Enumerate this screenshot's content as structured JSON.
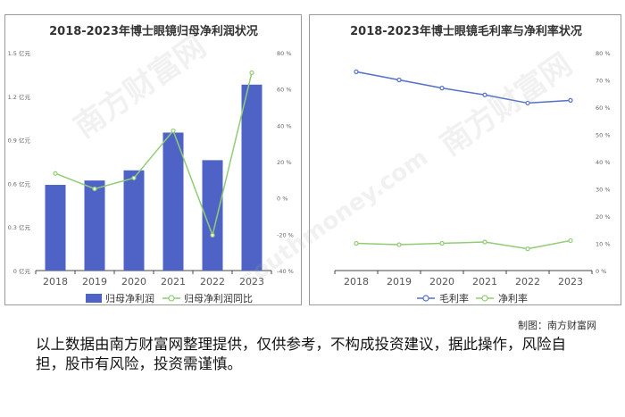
{
  "chart_data": [
    {
      "type": "bar",
      "title": "2018-2023年博士眼镜归母净利润状况",
      "categories": [
        "2018",
        "2019",
        "2020",
        "2021",
        "2022",
        "2023"
      ],
      "series": [
        {
          "name": "归母净利润",
          "type": "bar",
          "axis": "left",
          "color": "#4f63c6",
          "values": [
            0.59,
            0.62,
            0.69,
            0.95,
            0.76,
            1.28
          ]
        },
        {
          "name": "归母净利润同比",
          "type": "line",
          "axis": "right",
          "color": "#91cc75",
          "values": [
            13.5,
            5.0,
            11.0,
            37.0,
            -20.5,
            69.0
          ]
        }
      ],
      "y_left": {
        "ticks": [
          "0 亿元",
          "0.3 亿元",
          "0.6 亿元",
          "0.9 亿元",
          "1.2 亿元",
          "1.5 亿元"
        ],
        "ylim": [
          0,
          1.5
        ]
      },
      "y_right": {
        "ticks": [
          "-40 %",
          "-20 %",
          "0 %",
          "20 %",
          "40 %",
          "60 %",
          "80 %"
        ],
        "ylim": [
          -40,
          80
        ]
      },
      "legend": "bottom",
      "grid": false
    },
    {
      "type": "line",
      "title": "2018-2023年博士眼镜毛利率与净利率状况",
      "categories": [
        "2018",
        "2019",
        "2020",
        "2021",
        "2022",
        "2023"
      ],
      "series": [
        {
          "name": "毛利率",
          "color": "#5470c6",
          "values": [
            73.0,
            70.0,
            67.0,
            64.5,
            61.5,
            62.5
          ]
        },
        {
          "name": "净利率",
          "color": "#91cc75",
          "values": [
            10.0,
            9.5,
            10.0,
            10.5,
            8.0,
            11.0
          ]
        }
      ],
      "y_right": {
        "ticks": [
          "0 %",
          "10 %",
          "20 %",
          "30 %",
          "40 %",
          "50 %",
          "60 %",
          "70 %",
          "80 %"
        ],
        "ylim": [
          0,
          80
        ]
      },
      "legend": "bottom",
      "grid": false
    }
  ],
  "credit": "制图：南方财富网",
  "disclaimer": "以上数据由南方财富网整理提供，仅供参考，不构成投资建议，据此操作，风险自担，股市有风险，投资需谨慎。",
  "watermark": {
    "text": "南方财富网",
    "url_text": "southmoney.com"
  }
}
